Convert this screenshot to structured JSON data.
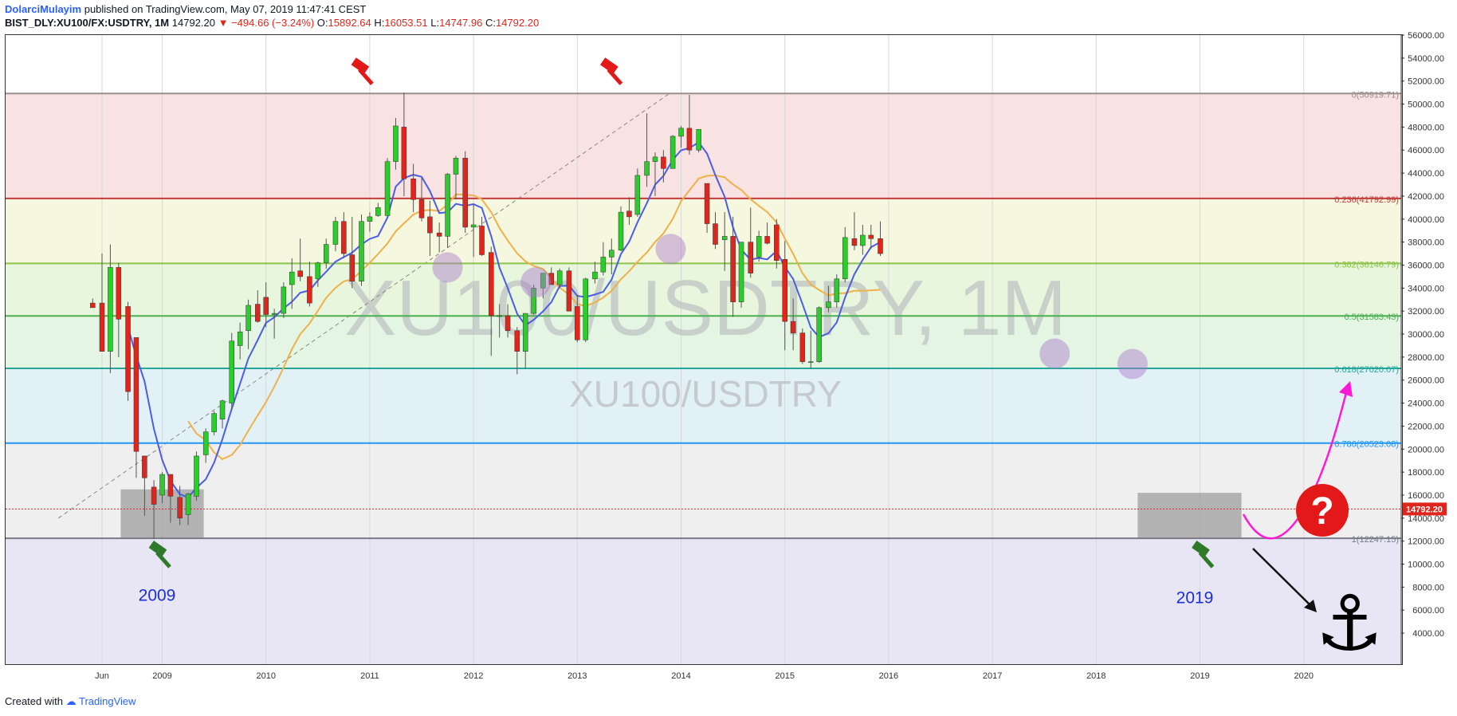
{
  "header": {
    "author": "DolarciMulayim",
    "published_text": "published on TradingView.com, May 07, 2019 11:47:41 CEST",
    "symbol_line": "BIST_DLY:XU100/FX:USDTRY, 1M",
    "last": "14792.20",
    "change": "▼ −494.66 (−3.24%)",
    "o_label": "O:",
    "o": "15892.64",
    "h_label": "H:",
    "h": "16053.51",
    "l_label": "L:",
    "l": "14747.96",
    "c_label": "C:",
    "c": "14792.20"
  },
  "footer": {
    "created_with": "Created with",
    "brand": "TradingView"
  },
  "colors": {
    "bull": "#2dcc2d",
    "bear": "#e0261c",
    "ma_fast": "#4a5de8",
    "ma_slow": "#f0b04a",
    "arrow_up": "#ff19d5",
    "question_bg": "#e31919",
    "gavel_red": "#e31919",
    "gavel_green": "#2f7a2a"
  },
  "chart_data": {
    "type": "candlestick",
    "title": "XU100/USDTRY, 1M",
    "watermark_big": "XU100/USDTRY, 1M",
    "watermark_small": "XU100/USDTRY",
    "ylim": [
      1300,
      56000
    ],
    "y_ticks": [
      "56000.00",
      "54000.00",
      "52000.00",
      "50000.00",
      "48000.00",
      "46000.00",
      "44000.00",
      "42000.00",
      "40000.00",
      "38000.00",
      "36000.00",
      "34000.00",
      "32000.00",
      "30000.00",
      "28000.00",
      "26000.00",
      "24000.00",
      "22000.00",
      "20000.00",
      "18000.00",
      "16000.00",
      "14000.00",
      "12000.00",
      "10000.00",
      "8000.00",
      "6000.00",
      "4000.00"
    ],
    "x_labels": [
      {
        "label": "Jun",
        "t": 2008.42
      },
      {
        "label": "2009",
        "t": 2009.0
      },
      {
        "label": "2010",
        "t": 2010.0
      },
      {
        "label": "2011",
        "t": 2011.0
      },
      {
        "label": "2012",
        "t": 2012.0
      },
      {
        "label": "2013",
        "t": 2013.0
      },
      {
        "label": "2014",
        "t": 2014.0
      },
      {
        "label": "2015",
        "t": 2015.0
      },
      {
        "label": "2016",
        "t": 2016.0
      },
      {
        "label": "2017",
        "t": 2017.0
      },
      {
        "label": "2018",
        "t": 2018.0
      },
      {
        "label": "2019",
        "t": 2019.0
      },
      {
        "label": "2020",
        "t": 2020.0
      }
    ],
    "fib_levels": [
      {
        "label": "0(50919.71)",
        "value": 50919.71,
        "color": "#9a8f8f",
        "band": "#f8e2e2"
      },
      {
        "label": "0.236(41792.99)",
        "value": 41792.99,
        "color": "#c43b3b",
        "band": "#f5f7df"
      },
      {
        "label": "0.382(36146.79)",
        "value": 36146.79,
        "color": "#8bc34a",
        "band": "#e7f6dc"
      },
      {
        "label": "0.5(31583.43)",
        "value": 31583.43,
        "color": "#4caf50",
        "band": "#e4f5e3"
      },
      {
        "label": "0.618(27020.07)",
        "value": 27020.07,
        "color": "#26a69a",
        "band": "#e2f1f6"
      },
      {
        "label": "0.786(20523.08)",
        "value": 20523.08,
        "color": "#2196f3",
        "band": "#efefef"
      },
      {
        "label": "1(12247.15)",
        "value": 12247.15,
        "color": "#787b86",
        "band": "#e8e6f5"
      }
    ],
    "price_label": "14792.20",
    "price_value": 14792.2,
    "trend_line": {
      "from": {
        "t": 2008.0,
        "v": 14000
      },
      "to": {
        "t": 2013.9,
        "v": 51000
      }
    },
    "support_boxes": [
      {
        "t0": 2008.6,
        "t1": 2009.4,
        "v0": 12300,
        "v1": 16500
      },
      {
        "t0": 2018.4,
        "t1": 2019.4,
        "v0": 12300,
        "v1": 16200
      }
    ],
    "annotations": [
      {
        "label": "2009",
        "t": 2008.95,
        "v": 6800,
        "color": "#1a2fd6"
      },
      {
        "label": "2019",
        "t": 2018.95,
        "v": 6600,
        "color": "#1a2fd6"
      }
    ],
    "gavels": [
      {
        "t": 2010.9,
        "v": 53000,
        "color": "red"
      },
      {
        "t": 2013.3,
        "v": 53000,
        "color": "red"
      },
      {
        "t": 2008.95,
        "v": 11000,
        "color": "green"
      },
      {
        "t": 2019.0,
        "v": 11000,
        "color": "green"
      }
    ],
    "circles": [
      {
        "t": 2011.75,
        "v": 35800
      },
      {
        "t": 2012.6,
        "v": 34500
      },
      {
        "t": 2013.9,
        "v": 37400
      },
      {
        "t": 2017.6,
        "v": 28300
      },
      {
        "t": 2018.35,
        "v": 27400
      }
    ],
    "candles": [
      [
        2008.33,
        32700,
        33100,
        32400,
        32300
      ],
      [
        2008.42,
        32700,
        37000,
        28500,
        28500
      ],
      [
        2008.5,
        28500,
        37800,
        26600,
        35800
      ],
      [
        2008.58,
        35800,
        36200,
        28000,
        31300
      ],
      [
        2008.67,
        32400,
        32800,
        24200,
        25000
      ],
      [
        2008.75,
        29700,
        29700,
        17500,
        19800
      ],
      [
        2008.83,
        19400,
        19400,
        14200,
        17500
      ],
      [
        2008.92,
        16700,
        17300,
        12200,
        15200
      ],
      [
        2009.0,
        16000,
        18000,
        15300,
        17800
      ],
      [
        2009.08,
        17800,
        17800,
        13600,
        15900
      ],
      [
        2009.17,
        15800,
        16800,
        13400,
        14000
      ],
      [
        2009.25,
        14300,
        16200,
        13400,
        16100
      ],
      [
        2009.33,
        15900,
        19800,
        15500,
        19400
      ],
      [
        2009.42,
        19500,
        21800,
        18800,
        21500
      ],
      [
        2009.5,
        21500,
        23300,
        21200,
        23100
      ],
      [
        2009.58,
        22600,
        24300,
        21800,
        24200
      ],
      [
        2009.67,
        24000,
        30100,
        23400,
        29400
      ],
      [
        2009.75,
        29000,
        31000,
        27800,
        30200
      ],
      [
        2009.83,
        30300,
        33000,
        28700,
        32500
      ],
      [
        2009.92,
        32600,
        33800,
        31000,
        31100
      ],
      [
        2010.0,
        33200,
        34500,
        30600,
        31700
      ],
      [
        2010.08,
        31700,
        32200,
        29600,
        31800
      ],
      [
        2010.17,
        31800,
        34500,
        31400,
        34100
      ],
      [
        2010.25,
        34300,
        36600,
        32200,
        35400
      ],
      [
        2010.33,
        35500,
        38300,
        34600,
        35000
      ],
      [
        2010.42,
        35000,
        36300,
        32400,
        32700
      ],
      [
        2010.5,
        34800,
        36300,
        34100,
        36200
      ],
      [
        2010.58,
        36200,
        38300,
        35700,
        37800
      ],
      [
        2010.67,
        37800,
        40200,
        37200,
        39800
      ],
      [
        2010.75,
        39800,
        40600,
        36600,
        37000
      ],
      [
        2010.83,
        36900,
        40200,
        34000,
        34600
      ],
      [
        2010.92,
        34600,
        40400,
        34200,
        39800
      ],
      [
        2011.0,
        39800,
        40600,
        38900,
        40200
      ],
      [
        2011.08,
        40300,
        41400,
        40200,
        41000
      ],
      [
        2011.17,
        40300,
        45300,
        40300,
        45000
      ],
      [
        2011.25,
        45000,
        48800,
        44300,
        48100
      ],
      [
        2011.33,
        48000,
        51000,
        42000,
        43500
      ],
      [
        2011.42,
        43500,
        44800,
        40600,
        41700
      ],
      [
        2011.5,
        41700,
        43600,
        39800,
        40100
      ],
      [
        2011.58,
        40200,
        41600,
        36800,
        38800
      ],
      [
        2011.67,
        38800,
        39700,
        37100,
        38500
      ],
      [
        2011.75,
        38500,
        44000,
        37500,
        43900
      ],
      [
        2011.83,
        43900,
        45500,
        41700,
        45300
      ],
      [
        2011.92,
        45300,
        45900,
        38800,
        39300
      ],
      [
        2012.0,
        39300,
        41300,
        36700,
        39500
      ],
      [
        2012.08,
        39400,
        40200,
        36800,
        36900
      ],
      [
        2012.17,
        37100,
        37600,
        28100,
        31600
      ],
      [
        2012.25,
        31600,
        32600,
        29700,
        31600
      ],
      [
        2012.33,
        31600,
        32600,
        29700,
        30300
      ],
      [
        2012.42,
        30300,
        30600,
        26500,
        28500
      ],
      [
        2012.5,
        28500,
        31800,
        27000,
        31800
      ],
      [
        2012.58,
        31800,
        34300,
        31700,
        34000
      ],
      [
        2012.67,
        34000,
        35300,
        33100,
        35300
      ],
      [
        2012.75,
        35300,
        35800,
        34300,
        34300
      ],
      [
        2012.83,
        34300,
        35700,
        34000,
        35500
      ],
      [
        2012.92,
        35500,
        35800,
        32000,
        32000
      ],
      [
        2013.0,
        32400,
        33400,
        29300,
        29500
      ],
      [
        2013.08,
        29500,
        34900,
        29300,
        34800
      ],
      [
        2013.17,
        34800,
        36300,
        34400,
        35400
      ],
      [
        2013.25,
        35400,
        38000,
        35100,
        36700
      ],
      [
        2013.33,
        36700,
        38300,
        35200,
        37300
      ],
      [
        2013.42,
        37300,
        41100,
        37200,
        40600
      ],
      [
        2013.5,
        40700,
        41900,
        39500,
        40200
      ],
      [
        2013.58,
        40400,
        44400,
        40200,
        43800
      ],
      [
        2013.67,
        43800,
        49200,
        42800,
        45000
      ],
      [
        2013.75,
        45000,
        45800,
        42000,
        45400
      ],
      [
        2013.83,
        45400,
        46000,
        43200,
        44400
      ],
      [
        2013.92,
        44400,
        47300,
        44400,
        47200
      ],
      [
        2014.0,
        47200,
        48100,
        46200,
        47900
      ],
      [
        2014.08,
        47900,
        50800,
        45600,
        46000
      ],
      [
        2014.17,
        46000,
        47800,
        45800,
        47800
      ],
      [
        2014.25,
        43100,
        43100,
        38800,
        39600
      ],
      [
        2014.33,
        39600,
        40600,
        37400,
        37800
      ],
      [
        2014.42,
        38200,
        40600,
        35500,
        38500
      ],
      [
        2014.5,
        38500,
        40200,
        31500,
        32800
      ],
      [
        2014.58,
        32800,
        38000,
        32300,
        38000
      ],
      [
        2014.67,
        38000,
        41000,
        34900,
        35300
      ],
      [
        2014.75,
        36700,
        39000,
        36300,
        38500
      ],
      [
        2014.83,
        38500,
        39700,
        37800,
        37900
      ],
      [
        2014.92,
        39500,
        40000,
        35700,
        36400
      ],
      [
        2015.0,
        36500,
        38100,
        28600,
        31100
      ],
      [
        2015.08,
        31100,
        33100,
        28600,
        30100
      ],
      [
        2015.17,
        30100,
        30500,
        27400,
        27600
      ],
      [
        2015.25,
        27600,
        30300,
        27000,
        27600
      ],
      [
        2015.33,
        27600,
        32400,
        27500,
        32300
      ],
      [
        2015.42,
        32300,
        34200,
        31900,
        32800
      ],
      [
        2015.5,
        32800,
        35200,
        32300,
        34800
      ],
      [
        2015.58,
        34800,
        39300,
        34500,
        38400
      ],
      [
        2015.67,
        38300,
        40600,
        37300,
        37700
      ],
      [
        2015.75,
        37700,
        39500,
        36900,
        38600
      ],
      [
        2015.83,
        38600,
        39500,
        37400,
        38300
      ],
      [
        2015.92,
        38300,
        39800,
        36800,
        37000
      ]
    ]
  }
}
